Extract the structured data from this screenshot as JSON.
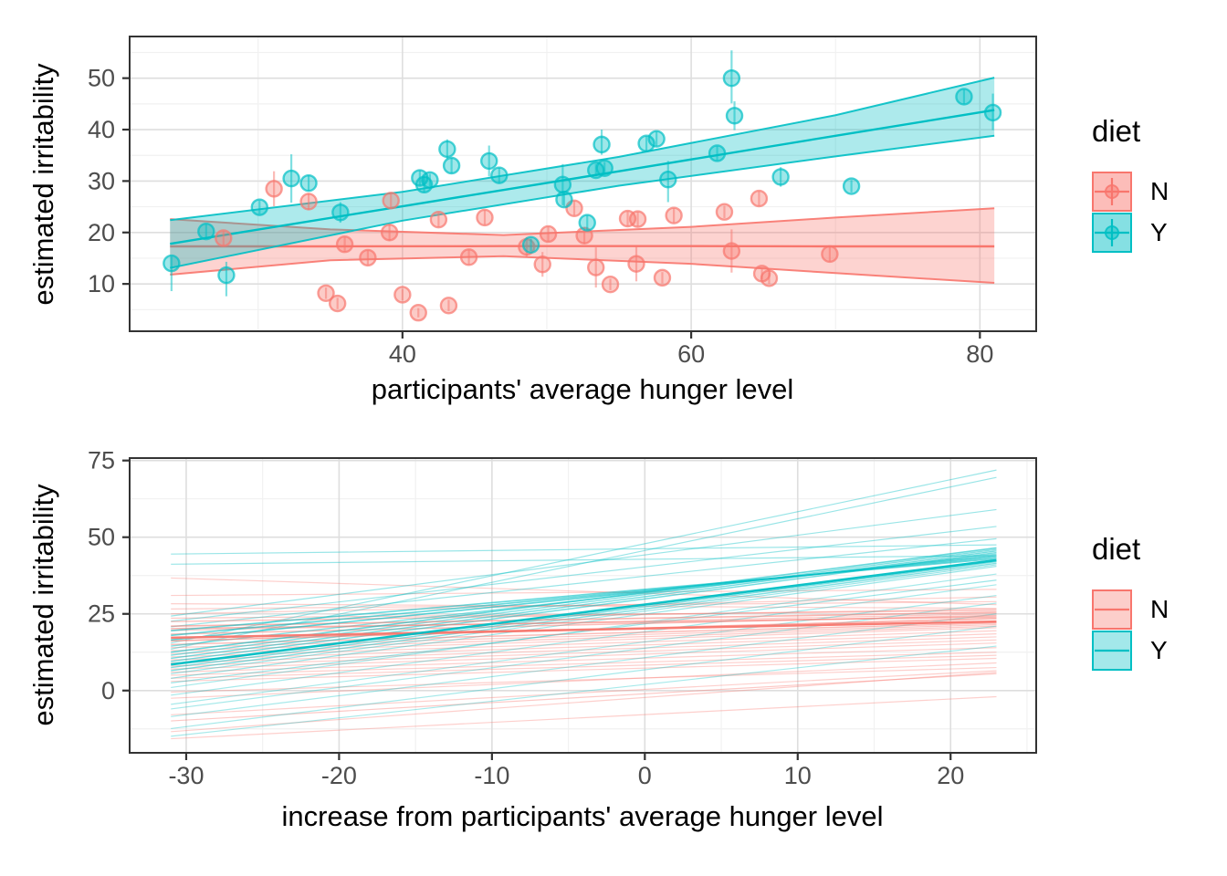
{
  "colors": {
    "N": "#F8766D",
    "Y": "#00BFC4",
    "tick_label": "#4D4D4D",
    "title_text": "#000000",
    "grid_major": "#DEDEDE",
    "grid_minor": "#F1F1F1",
    "panel_border": "#333333",
    "background": "#FFFFFF"
  },
  "legend_top": {
    "title": "diet",
    "entries": [
      {
        "label": "N",
        "key": "N"
      },
      {
        "label": "Y",
        "key": "Y"
      }
    ]
  },
  "legend_bottom": {
    "title": "diet",
    "entries": [
      {
        "label": "N",
        "key": "N"
      },
      {
        "label": "Y",
        "key": "Y"
      }
    ]
  },
  "chart_data": [
    {
      "type": "scatter",
      "xlabel": "participants' average hunger level",
      "ylabel": "estimated irritability",
      "x_ticks": [
        40,
        60,
        80
      ],
      "x_minor": [
        30,
        50,
        70
      ],
      "y_ticks": [
        10,
        20,
        30,
        40,
        50
      ],
      "y_minor": [
        5,
        15,
        25,
        35,
        45,
        55
      ],
      "xlim": [
        21.1,
        83.9
      ],
      "ylim": [
        0.8,
        58.1
      ],
      "grid": true,
      "legend_position": "right",
      "series": [
        {
          "name": "N",
          "points": [
            [
              27.6,
              18.9,
              17.5,
              20.3
            ],
            [
              31.1,
              28.5,
              25.1,
              31.9
            ],
            [
              33.5,
              26.0,
              24.4,
              27.6
            ],
            [
              34.7,
              8.2,
              7.1,
              9.3
            ],
            [
              35.5,
              6.2,
              5.1,
              7.3
            ],
            [
              36.0,
              17.7,
              16.3,
              19.1
            ],
            [
              37.6,
              15.1,
              13.7,
              16.5
            ],
            [
              39.1,
              20.0,
              18.4,
              21.6
            ],
            [
              39.2,
              26.2,
              24.6,
              27.8
            ],
            [
              40.0,
              7.9,
              6.8,
              9.0
            ],
            [
              41.1,
              4.4,
              3.5,
              5.3
            ],
            [
              42.5,
              22.5,
              21.1,
              23.9
            ],
            [
              43.2,
              5.8,
              4.7,
              6.9
            ],
            [
              44.6,
              15.2,
              13.8,
              16.6
            ],
            [
              45.7,
              22.9,
              21.5,
              24.3
            ],
            [
              48.6,
              17.2,
              15.3,
              19.1
            ],
            [
              49.7,
              13.8,
              11.4,
              16.2
            ],
            [
              50.1,
              19.7,
              18.3,
              21.1
            ],
            [
              51.9,
              24.7,
              23.3,
              26.1
            ],
            [
              52.6,
              19.4,
              17.8,
              21.0
            ],
            [
              53.4,
              13.2,
              9.3,
              17.1
            ],
            [
              54.4,
              9.9,
              8.8,
              11.0
            ],
            [
              55.6,
              22.7,
              21.3,
              24.1
            ],
            [
              56.3,
              22.6,
              21.2,
              24.0
            ],
            [
              56.2,
              13.9,
              10.5,
              17.3
            ],
            [
              58.0,
              11.2,
              10.1,
              12.3
            ],
            [
              58.8,
              23.3,
              21.9,
              24.7
            ],
            [
              62.3,
              24.0,
              22.8,
              25.2
            ],
            [
              62.8,
              16.4,
              12.2,
              20.6
            ],
            [
              64.7,
              26.6,
              25.2,
              28.0
            ],
            [
              64.9,
              12.0,
              10.9,
              13.1
            ],
            [
              65.4,
              11.1,
              10.0,
              12.2
            ],
            [
              69.6,
              15.8,
              14.4,
              17.2
            ]
          ]
        },
        {
          "name": "Y",
          "points": [
            [
              24.0,
              14.0,
              8.6,
              15.3
            ],
            [
              26.4,
              20.2,
              18.8,
              21.6
            ],
            [
              27.8,
              11.7,
              7.6,
              14.3
            ],
            [
              30.1,
              24.9,
              23.6,
              26.2
            ],
            [
              32.3,
              30.5,
              25.8,
              35.2
            ],
            [
              33.5,
              29.6,
              28.1,
              31.1
            ],
            [
              35.7,
              23.9,
              21.9,
              25.9
            ],
            [
              41.2,
              30.6,
              29.1,
              32.1
            ],
            [
              41.5,
              29.3,
              27.8,
              30.8
            ],
            [
              41.9,
              30.2,
              29.0,
              31.4
            ],
            [
              43.1,
              36.2,
              34.3,
              38.1
            ],
            [
              43.4,
              33.0,
              31.5,
              34.5
            ],
            [
              46.0,
              33.9,
              30.9,
              36.9
            ],
            [
              46.7,
              31.1,
              29.6,
              32.6
            ],
            [
              48.9,
              17.6,
              16.4,
              18.8
            ],
            [
              51.1,
              29.3,
              25.3,
              33.3
            ],
            [
              51.2,
              26.4,
              25.1,
              27.7
            ],
            [
              52.8,
              21.9,
              20.5,
              23.3
            ],
            [
              53.4,
              32.1,
              30.9,
              33.3
            ],
            [
              54.0,
              32.5,
              31.3,
              33.7
            ],
            [
              53.8,
              37.1,
              35.1,
              40.0
            ],
            [
              56.9,
              37.3,
              35.9,
              38.7
            ],
            [
              57.6,
              38.2,
              36.8,
              39.6
            ],
            [
              58.4,
              30.3,
              25.9,
              33.9
            ],
            [
              61.8,
              35.4,
              34.0,
              36.8
            ],
            [
              62.8,
              50.0,
              45.1,
              55.4
            ],
            [
              63.0,
              42.7,
              39.9,
              45.5
            ],
            [
              66.2,
              30.8,
              28.9,
              32.7
            ],
            [
              71.1,
              29.0,
              27.8,
              30.2
            ],
            [
              78.9,
              46.4,
              45.0,
              47.8
            ],
            [
              80.9,
              43.3,
              39.9,
              47.0
            ]
          ]
        }
      ],
      "smooth": [
        {
          "name": "N",
          "x": [
            23.9,
            35,
            47,
            60,
            70,
            81
          ],
          "center": [
            17.3,
            17.3,
            17.35,
            17.35,
            17.3,
            17.3
          ],
          "upper": [
            22.6,
            20.6,
            19.5,
            21.1,
            22.9,
            24.7
          ],
          "lower": [
            11.8,
            14.6,
            15.4,
            13.9,
            12.1,
            10.2
          ]
        },
        {
          "name": "Y",
          "x": [
            23.9,
            40,
            55,
            70,
            81
          ],
          "center": [
            17.8,
            25.1,
            31.9,
            38.8,
            43.8
          ],
          "upper": [
            22.4,
            27.9,
            34.7,
            42.8,
            50.1
          ],
          "lower": [
            13.1,
            22.3,
            29.1,
            34.8,
            38.8
          ]
        }
      ]
    },
    {
      "type": "line",
      "xlabel": "increase from participants' average hunger level",
      "ylabel": "estimated irritability",
      "x_ticks": [
        -30,
        -20,
        -10,
        0,
        10,
        20
      ],
      "x_minor": [
        -25,
        -15,
        -5,
        5,
        15,
        25
      ],
      "y_ticks": [
        0,
        25,
        50,
        75
      ],
      "y_minor": [
        -12.5,
        12.5,
        37.5,
        62.5
      ],
      "xlim": [
        -33.7,
        25.6
      ],
      "ylim": [
        -20.3,
        75.8
      ],
      "x_range": [
        -31,
        23
      ],
      "grid": true,
      "legend_position": "right",
      "series": [
        {
          "name": "N",
          "lines": [
            [
              36.7,
              28.0,
              1.2,
              0.35
            ],
            [
              31.0,
              33.0,
              1.2,
              0.35
            ],
            [
              28.3,
              26.8,
              1.2,
              0.35
            ],
            [
              26.6,
              29.0,
              1.2,
              0.35
            ],
            [
              25.0,
              30.5,
              1.2,
              0.35
            ],
            [
              23.6,
              26.0,
              1.2,
              0.4
            ],
            [
              22.5,
              26.5,
              1.4,
              0.45
            ],
            [
              21.0,
              25.5,
              1.6,
              0.55
            ],
            [
              20.2,
              24.0,
              1.6,
              0.55
            ],
            [
              19.6,
              25.0,
              1.2,
              0.4
            ],
            [
              18.4,
              24.5,
              1.4,
              0.5
            ],
            [
              17.2,
              22.5,
              2.6,
              0.95
            ],
            [
              16.2,
              23.5,
              1.6,
              0.6
            ],
            [
              15.0,
              22.0,
              1.4,
              0.5
            ],
            [
              14.0,
              21.5,
              1.2,
              0.4
            ],
            [
              13.0,
              21.0,
              1.2,
              0.4
            ],
            [
              12.0,
              20.5,
              1.2,
              0.35
            ],
            [
              11.0,
              19.5,
              1.2,
              0.35
            ],
            [
              10.0,
              18.5,
              1.2,
              0.35
            ],
            [
              9.0,
              17.5,
              1.2,
              0.35
            ],
            [
              8.0,
              16.5,
              1.2,
              0.35
            ],
            [
              7.0,
              15.5,
              1.2,
              0.35
            ],
            [
              6.0,
              14.0,
              1.2,
              0.35
            ],
            [
              5.0,
              12.5,
              1.2,
              0.35
            ],
            [
              4.0,
              11.5,
              1.2,
              0.35
            ],
            [
              3.0,
              10.5,
              1.2,
              0.35
            ],
            [
              -0.5,
              7.5,
              1.2,
              0.35
            ],
            [
              -2.5,
              9.0,
              1.2,
              0.35
            ],
            [
              -7.9,
              6.5,
              1.2,
              0.35
            ],
            [
              -9.9,
              5.5,
              1.2,
              0.4
            ],
            [
              -13.4,
              6.0,
              1.2,
              0.35
            ],
            [
              -15.7,
              -2.0,
              1.2,
              0.35
            ]
          ]
        },
        {
          "name": "Y",
          "lines": [
            [
              44.5,
              47.5,
              1.2,
              0.4
            ],
            [
              41.2,
              44.0,
              1.2,
              0.4
            ],
            [
              24.3,
              59.0,
              1.2,
              0.4
            ],
            [
              22.6,
              53.5,
              1.2,
              0.4
            ],
            [
              20.8,
              49.5,
              1.2,
              0.4
            ],
            [
              19.5,
              43.0,
              1.6,
              0.6
            ],
            [
              18.0,
              43.5,
              1.6,
              0.6
            ],
            [
              16.5,
              44.0,
              1.6,
              0.65
            ],
            [
              15.5,
              71.9,
              1.2,
              0.4
            ],
            [
              14.5,
              44.5,
              1.4,
              0.5
            ],
            [
              13.5,
              69.5,
              1.2,
              0.4
            ],
            [
              12.5,
              46.5,
              1.6,
              0.6
            ],
            [
              11.5,
              46.0,
              1.4,
              0.5
            ],
            [
              10.5,
              45.5,
              1.4,
              0.55
            ],
            [
              9.5,
              45.0,
              1.4,
              0.55
            ],
            [
              8.5,
              42.5,
              2.6,
              0.95
            ],
            [
              7.5,
              42.0,
              1.4,
              0.5
            ],
            [
              6.5,
              41.5,
              1.4,
              0.5
            ],
            [
              5.5,
              41.0,
              1.2,
              0.4
            ],
            [
              4.0,
              40.5,
              1.2,
              0.4
            ],
            [
              2.5,
              36.0,
              1.2,
              0.4
            ],
            [
              1.0,
              38.0,
              1.2,
              0.35
            ],
            [
              -1.5,
              34.5,
              1.2,
              0.35
            ],
            [
              -4.5,
              31.0,
              1.2,
              0.35
            ],
            [
              -6.0,
              28.5,
              1.2,
              0.35
            ],
            [
              -8.5,
              25.0,
              1.2,
              0.35
            ],
            [
              -12.4,
              21.0,
              1.2,
              0.35
            ],
            [
              -14.9,
              14.5,
              1.2,
              0.35
            ]
          ]
        }
      ]
    }
  ]
}
